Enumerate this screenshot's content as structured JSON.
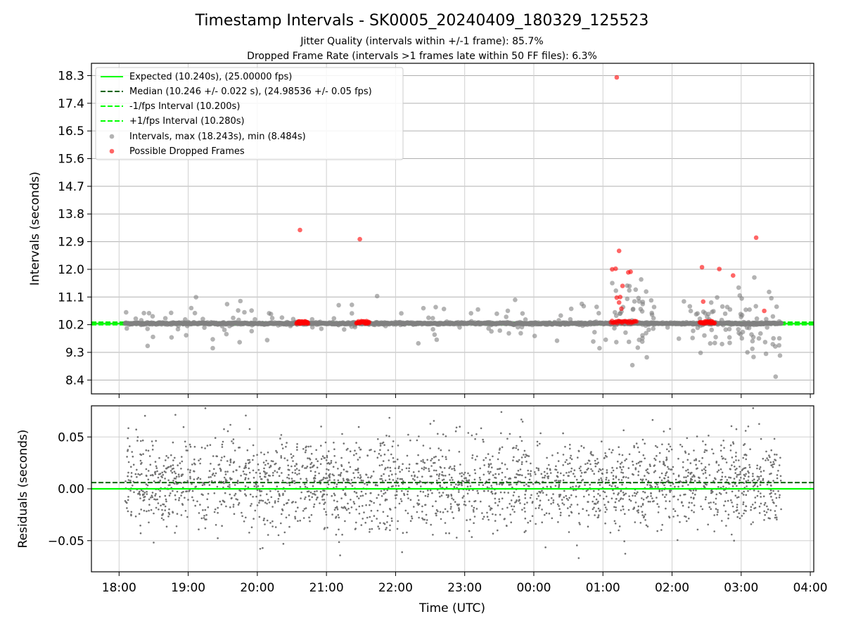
{
  "title": "Timestamp Intervals - SK0005_20240409_180329_125523",
  "subtitle_1": "Jitter Quality (intervals within +/-1 frame): 85.7%",
  "subtitle_2": "Dropped Frame Rate (intervals >1 frames late within 50 FF files): 6.3%",
  "colors": {
    "expected": "#00ff00",
    "median": "#006400",
    "interval_points": "#808080",
    "dropped_points": "#ff0000",
    "residuals": "#707070",
    "grid": "#b0b0b0"
  },
  "chart_data": [
    {
      "type": "scatter",
      "panel": "top",
      "xlabel": "",
      "ylabel": "Intervals (seconds)",
      "x_range_hours": [
        17.6,
        28.05
      ],
      "ylim": [
        7.95,
        18.7
      ],
      "yticks": [
        "18.3",
        "17.4",
        "16.5",
        "15.6",
        "14.7",
        "13.8",
        "12.9",
        "12.0",
        "11.1",
        "10.2",
        "9.3",
        "8.4"
      ],
      "grid": true,
      "legend_position": "upper-left",
      "legend": [
        "Expected (10.240s), (25.00000 fps)",
        "Median (10.246 +/- 0.022 s), (24.98536 +/- 0.05 fps)",
        "-1/fps Interval (10.200s)",
        "+1/fps Interval (10.280s)",
        "Intervals, max (18.243s), min (8.484s)",
        "Possible Dropped Frames"
      ],
      "lines": {
        "expected": 10.24,
        "median": 10.246,
        "minus_one_frame": 10.2,
        "plus_one_frame": 10.28
      },
      "data_x_start": "18:05",
      "data_x_end": "03:35",
      "dropped_points": [
        {
          "x": "01:12",
          "y": 18.243
        },
        {
          "x": "20:37",
          "y": 13.28
        },
        {
          "x": "21:29",
          "y": 12.98
        },
        {
          "x": "03:13",
          "y": 13.03
        },
        {
          "x": "01:14",
          "y": 12.6
        },
        {
          "x": "01:08",
          "y": 12.0
        },
        {
          "x": "01:11",
          "y": 12.02
        },
        {
          "x": "01:22",
          "y": 11.9
        },
        {
          "x": "01:24",
          "y": 11.92
        },
        {
          "x": "01:17",
          "y": 11.46
        },
        {
          "x": "01:12",
          "y": 11.08
        },
        {
          "x": "01:15",
          "y": 11.1
        },
        {
          "x": "01:14",
          "y": 10.92
        },
        {
          "x": "01:16",
          "y": 10.72
        },
        {
          "x": "02:26",
          "y": 12.07
        },
        {
          "x": "02:41",
          "y": 12.01
        },
        {
          "x": "02:53",
          "y": 11.8
        },
        {
          "x": "02:27",
          "y": 10.95
        },
        {
          "x": "03:20",
          "y": 10.65
        }
      ],
      "dropped_clusters": [
        {
          "from": "20:34",
          "to": "20:44",
          "y": 10.27
        },
        {
          "from": "21:26",
          "to": "21:37",
          "y": 10.28
        },
        {
          "from": "01:07",
          "to": "01:29",
          "y": 10.29
        },
        {
          "from": "02:24",
          "to": "02:37",
          "y": 10.28
        }
      ]
    },
    {
      "type": "scatter",
      "panel": "bottom",
      "xlabel": "Time (UTC)",
      "ylabel": "Residuals (seconds)",
      "ylim": [
        -0.08,
        0.08
      ],
      "yticks": [
        "0.05",
        "0.00",
        "−0.05"
      ],
      "xticks": [
        "18:00",
        "19:00",
        "20:00",
        "21:00",
        "22:00",
        "23:00",
        "00:00",
        "01:00",
        "02:00",
        "03:00",
        "04:00"
      ],
      "grid": true,
      "lines": {
        "zero": 0.0,
        "median_offset": 0.006
      },
      "residual_spread_sd": 0.022
    }
  ]
}
